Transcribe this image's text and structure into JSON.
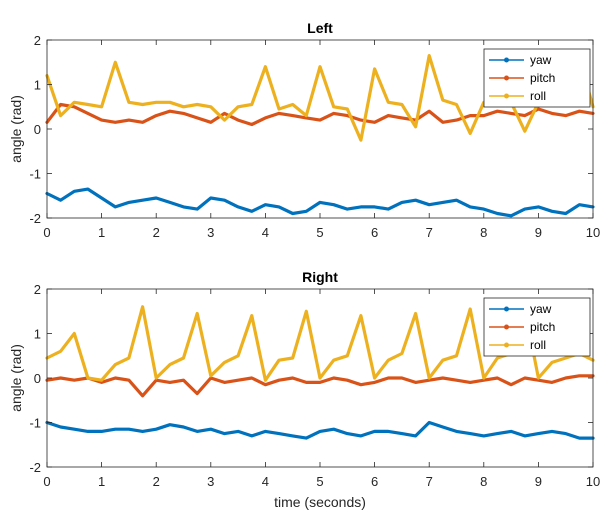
{
  "chart_data": [
    {
      "type": "line",
      "title": "Left",
      "xlabel": "",
      "ylabel": "angle (rad)",
      "xlim": [
        0,
        10
      ],
      "ylim": [
        -2,
        2
      ],
      "xticks": [
        "0",
        "1",
        "2",
        "3",
        "4",
        "5",
        "6",
        "7",
        "8",
        "9",
        "10"
      ],
      "yticks": [
        "-2",
        "-1",
        "0",
        "1",
        "2"
      ],
      "legend": {
        "position": "top-right"
      },
      "x": [
        0,
        0.25,
        0.5,
        0.75,
        1,
        1.25,
        1.5,
        1.75,
        2,
        2.25,
        2.5,
        2.75,
        3,
        3.25,
        3.5,
        3.75,
        4,
        4.25,
        4.5,
        4.75,
        5,
        5.25,
        5.5,
        5.75,
        6,
        6.25,
        6.5,
        6.75,
        7,
        7.25,
        7.5,
        7.75,
        8,
        8.25,
        8.5,
        8.75,
        9,
        9.25,
        9.5,
        9.75,
        10
      ],
      "series": [
        {
          "name": "yaw",
          "color": "#0072BD",
          "values": [
            -1.45,
            -1.6,
            -1.4,
            -1.35,
            -1.55,
            -1.75,
            -1.65,
            -1.6,
            -1.55,
            -1.65,
            -1.75,
            -1.8,
            -1.55,
            -1.6,
            -1.75,
            -1.85,
            -1.7,
            -1.75,
            -1.9,
            -1.85,
            -1.65,
            -1.7,
            -1.8,
            -1.75,
            -1.75,
            -1.8,
            -1.65,
            -1.6,
            -1.7,
            -1.65,
            -1.6,
            -1.75,
            -1.8,
            -1.9,
            -1.95,
            -1.8,
            -1.75,
            -1.85,
            -1.9,
            -1.7,
            -1.75
          ]
        },
        {
          "name": "pitch",
          "color": "#D95319",
          "values": [
            0.15,
            0.55,
            0.5,
            0.35,
            0.2,
            0.15,
            0.2,
            0.15,
            0.3,
            0.4,
            0.35,
            0.25,
            0.15,
            0.35,
            0.2,
            0.1,
            0.25,
            0.35,
            0.3,
            0.25,
            0.2,
            0.35,
            0.3,
            0.2,
            0.15,
            0.3,
            0.25,
            0.2,
            0.4,
            0.15,
            0.2,
            0.3,
            0.3,
            0.4,
            0.35,
            0.3,
            0.45,
            0.35,
            0.3,
            0.4,
            0.35
          ]
        },
        {
          "name": "roll",
          "color": "#EDB120",
          "values": [
            1.2,
            0.3,
            0.6,
            0.55,
            0.5,
            1.5,
            0.6,
            0.55,
            0.6,
            0.6,
            0.5,
            0.55,
            0.5,
            0.2,
            0.5,
            0.55,
            1.4,
            0.45,
            0.55,
            0.3,
            1.4,
            0.5,
            0.45,
            -0.25,
            1.35,
            0.6,
            0.55,
            0.05,
            1.65,
            0.65,
            0.55,
            -0.1,
            0.6,
            0.55,
            0.6,
            -0.05,
            0.6,
            0.55,
            0.6,
            1.6,
            0.5
          ]
        }
      ]
    },
    {
      "type": "line",
      "title": "Right",
      "xlabel": "time (seconds)",
      "ylabel": "angle (rad)",
      "xlim": [
        0,
        10
      ],
      "ylim": [
        -2,
        2
      ],
      "xticks": [
        "0",
        "1",
        "2",
        "3",
        "4",
        "5",
        "6",
        "7",
        "8",
        "9",
        "10"
      ],
      "yticks": [
        "-2",
        "-1",
        "0",
        "1",
        "2"
      ],
      "legend": {
        "position": "top-right"
      },
      "x": [
        0,
        0.25,
        0.5,
        0.75,
        1,
        1.25,
        1.5,
        1.75,
        2,
        2.25,
        2.5,
        2.75,
        3,
        3.25,
        3.5,
        3.75,
        4,
        4.25,
        4.5,
        4.75,
        5,
        5.25,
        5.5,
        5.75,
        6,
        6.25,
        6.5,
        6.75,
        7,
        7.25,
        7.5,
        7.75,
        8,
        8.25,
        8.5,
        8.75,
        9,
        9.25,
        9.5,
        9.75,
        10
      ],
      "series": [
        {
          "name": "yaw",
          "color": "#0072BD",
          "values": [
            -1.0,
            -1.1,
            -1.15,
            -1.2,
            -1.2,
            -1.15,
            -1.15,
            -1.2,
            -1.15,
            -1.05,
            -1.1,
            -1.2,
            -1.15,
            -1.25,
            -1.2,
            -1.3,
            -1.2,
            -1.25,
            -1.3,
            -1.35,
            -1.2,
            -1.15,
            -1.25,
            -1.3,
            -1.2,
            -1.2,
            -1.25,
            -1.3,
            -1.0,
            -1.1,
            -1.2,
            -1.25,
            -1.3,
            -1.25,
            -1.2,
            -1.3,
            -1.25,
            -1.2,
            -1.25,
            -1.35,
            -1.35
          ]
        },
        {
          "name": "pitch",
          "color": "#D95319",
          "values": [
            -0.05,
            0.0,
            -0.05,
            0.0,
            -0.1,
            0.0,
            -0.05,
            -0.4,
            -0.05,
            -0.1,
            -0.05,
            -0.35,
            0.0,
            -0.1,
            -0.05,
            0.0,
            -0.15,
            -0.05,
            0.0,
            -0.1,
            -0.1,
            0.0,
            -0.05,
            -0.15,
            -0.1,
            0.0,
            0.0,
            -0.1,
            -0.05,
            0.0,
            -0.05,
            -0.1,
            -0.05,
            0.0,
            -0.15,
            0.0,
            -0.05,
            -0.1,
            0.0,
            0.05,
            0.05
          ]
        },
        {
          "name": "roll",
          "color": "#EDB120",
          "values": [
            0.45,
            0.6,
            1.0,
            0.0,
            -0.05,
            0.3,
            0.45,
            1.6,
            0.0,
            0.3,
            0.45,
            1.45,
            0.05,
            0.35,
            0.5,
            1.4,
            -0.05,
            0.4,
            0.45,
            1.5,
            0.0,
            0.4,
            0.5,
            1.4,
            0.0,
            0.4,
            0.55,
            1.45,
            0.0,
            0.4,
            0.5,
            1.55,
            0.0,
            0.45,
            0.55,
            1.55,
            0.0,
            0.35,
            0.45,
            0.55,
            0.4
          ]
        }
      ]
    }
  ]
}
